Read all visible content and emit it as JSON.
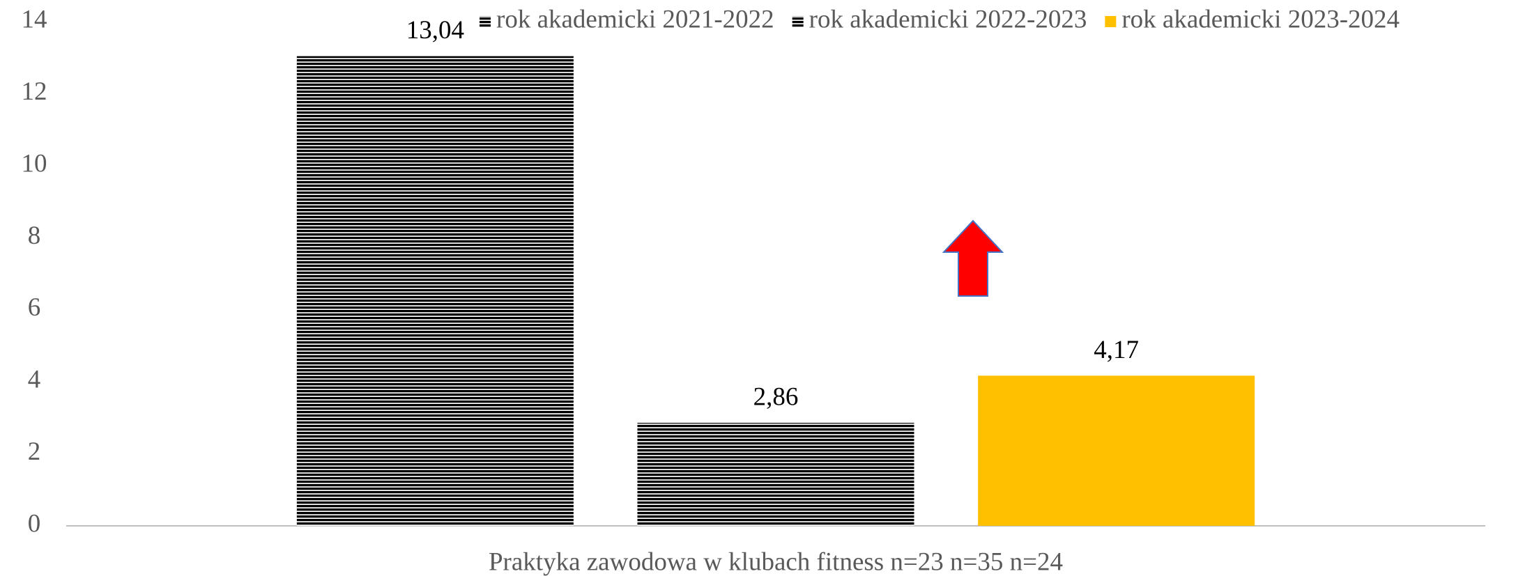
{
  "chart_data": {
    "type": "bar",
    "categories": [
      "Praktyka zawodowa w klubach fitness n=23 n=35 n=24"
    ],
    "series": [
      {
        "name": "rok akademicki 2021-2022",
        "color": "#5b9bd5",
        "hatch": true,
        "values": [
          13.04
        ],
        "value_labels": [
          "13,04"
        ]
      },
      {
        "name": "rok akademicki 2022-2023",
        "color": "#ed7d31",
        "hatch": true,
        "values": [
          2.86
        ],
        "value_labels": [
          "2,86"
        ]
      },
      {
        "name": "rok akademicki 2023-2024",
        "color": "#ffc000",
        "hatch": false,
        "values": [
          4.17
        ],
        "value_labels": [
          "4,17"
        ]
      }
    ],
    "ylim": [
      0,
      14
    ],
    "yticks": [
      0,
      2,
      4,
      6,
      8,
      10,
      12,
      14
    ],
    "grid": false,
    "legend": "top"
  }
}
